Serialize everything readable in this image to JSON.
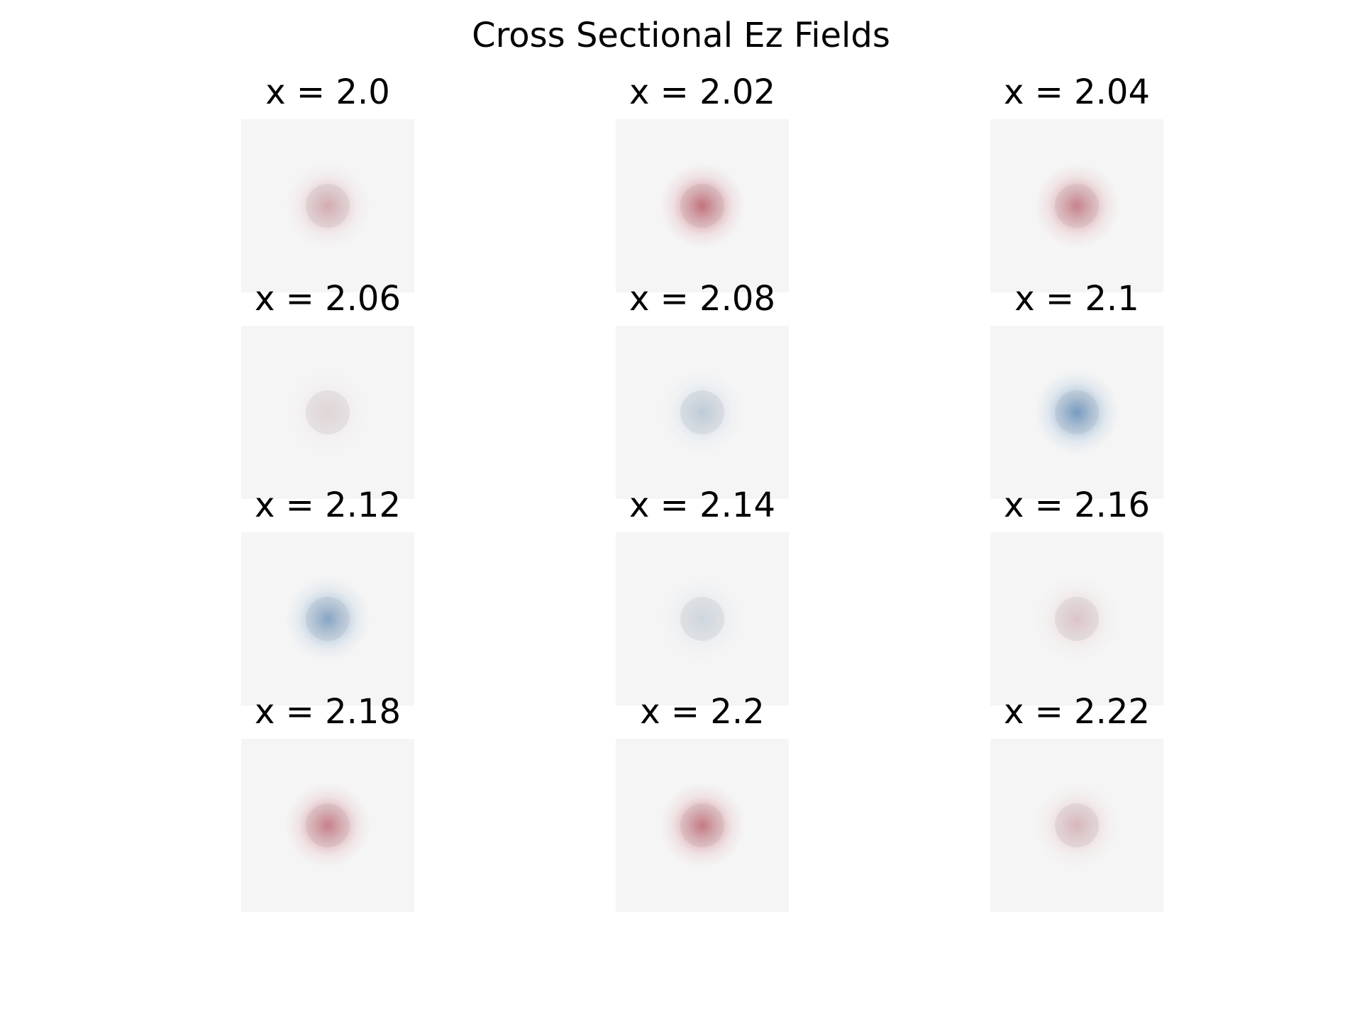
{
  "chart_data": {
    "type": "heatmap",
    "title": "Cross Sectional Ez Fields",
    "layout": {
      "rows": 4,
      "cols": 3
    },
    "colormap": {
      "negative": "#2166ac",
      "zero": "#f5f5f5",
      "positive": "#b2182b"
    },
    "grid": false,
    "axes_visible": false,
    "panels": [
      {
        "title": "x = 2.0",
        "x": 2.0,
        "field_relative": 0.35
      },
      {
        "title": "x = 2.02",
        "x": 2.02,
        "field_relative": 0.7
      },
      {
        "title": "x = 2.04",
        "x": 2.04,
        "field_relative": 0.6
      },
      {
        "title": "x = 2.06",
        "x": 2.06,
        "field_relative": 0.1
      },
      {
        "title": "x = 2.08",
        "x": 2.08,
        "field_relative": -0.25
      },
      {
        "title": "x = 2.1",
        "x": 2.1,
        "field_relative": -0.7
      },
      {
        "title": "x = 2.12",
        "x": 2.12,
        "field_relative": -0.6
      },
      {
        "title": "x = 2.14",
        "x": 2.14,
        "field_relative": -0.15
      },
      {
        "title": "x = 2.16",
        "x": 2.16,
        "field_relative": 0.2
      },
      {
        "title": "x = 2.18",
        "x": 2.18,
        "field_relative": 0.62
      },
      {
        "title": "x = 2.2",
        "x": 2.2,
        "field_relative": 0.65
      },
      {
        "title": "x = 2.22",
        "x": 2.22,
        "field_relative": 0.28
      }
    ]
  }
}
